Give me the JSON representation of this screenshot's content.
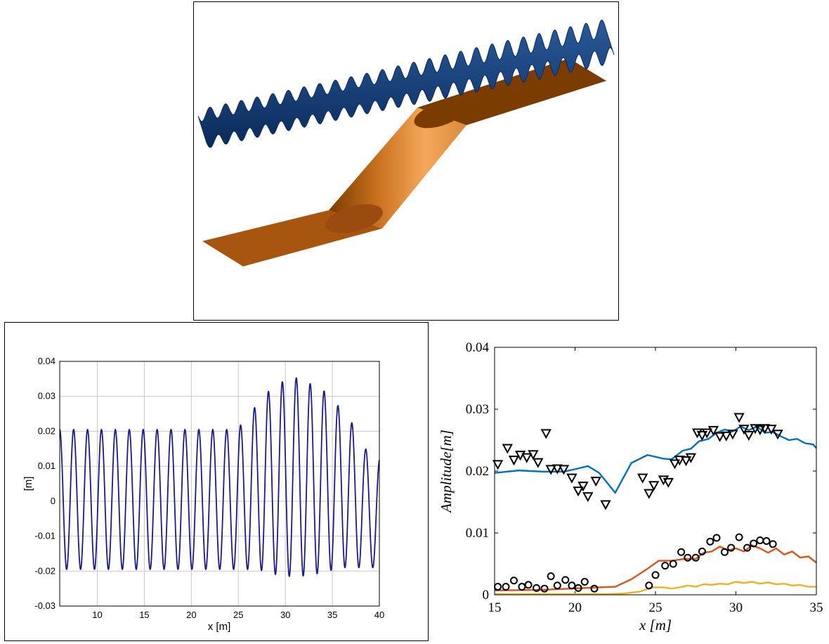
{
  "chart_data": [
    {
      "type": "other",
      "description": "3D render of a wave surface above an oblique bathymetry ramp"
    },
    {
      "type": "line",
      "xlabel": "x [m]",
      "ylabel": "[m]",
      "xlim": [
        6,
        40
      ],
      "ylim": [
        -0.03,
        0.04
      ],
      "x_ticks": [
        "10",
        "15",
        "20",
        "25",
        "30",
        "35",
        "40"
      ],
      "y_ticks": [
        "0.04",
        "0.03",
        "0.02",
        "0.01",
        "0",
        "-0.01",
        "-0.02",
        "-0.03"
      ],
      "grid": true,
      "series": [
        {
          "name": "",
          "color": "#1a1a8c",
          "wavelength": 1.48,
          "envelope_x": [
            6,
            24,
            25.5,
            26.5,
            28,
            29.5,
            31.5,
            33,
            34.5,
            36,
            37.5,
            38.5,
            40
          ],
          "envelope_max": [
            0.0205,
            0.0205,
            0.022,
            0.026,
            0.031,
            0.034,
            0.0355,
            0.033,
            0.031,
            0.026,
            0.021,
            0.015,
            0.012
          ],
          "envelope_min": [
            -0.0195,
            -0.0195,
            -0.0195,
            -0.0195,
            -0.02,
            -0.0215,
            -0.0215,
            -0.021,
            -0.02,
            -0.019,
            -0.019,
            -0.019,
            -0.019
          ]
        }
      ]
    },
    {
      "type": "line",
      "xlabel": "x [m]",
      "ylabel": "Amplitude[m]",
      "xlim": [
        15,
        35
      ],
      "ylim": [
        0,
        0.04
      ],
      "x_ticks": [
        "15",
        "20",
        "25",
        "30",
        "35"
      ],
      "y_ticks": [
        "0.04",
        "0.03",
        "0.02",
        "0.01",
        "0"
      ],
      "grid": false,
      "series": [
        {
          "name": "",
          "color": "#0072bd",
          "x": [
            15,
            16.5,
            18,
            19.3,
            20,
            20.8,
            21.5,
            22.5,
            23.5,
            24.5,
            25.5,
            26,
            26.7,
            27.2,
            27.7,
            28.3,
            28.8,
            29.3,
            29.8,
            30.3,
            30.8,
            31.3,
            31.8,
            32.3,
            32.8,
            33.3,
            33.8,
            34.3,
            34.8,
            35
          ],
          "y": [
            0.0197,
            0.0201,
            0.0199,
            0.0199,
            0.0203,
            0.0208,
            0.0197,
            0.0165,
            0.0213,
            0.0226,
            0.022,
            0.0219,
            0.0233,
            0.0236,
            0.0248,
            0.0252,
            0.0262,
            0.0267,
            0.0264,
            0.0272,
            0.0266,
            0.0272,
            0.0262,
            0.0263,
            0.0256,
            0.025,
            0.0252,
            0.0245,
            0.0243,
            0.0237
          ]
        },
        {
          "name": "",
          "color": "#d95319",
          "x": [
            15,
            18,
            21.5,
            22.5,
            23.5,
            24.5,
            25.2,
            26,
            26.8,
            27.5,
            28,
            28.5,
            29,
            29.5,
            30,
            30.5,
            31,
            31.5,
            32,
            32.5,
            33,
            33.5,
            34,
            34.5,
            35
          ],
          "y": [
            0.0007,
            0.0008,
            0.0012,
            0.0013,
            0.0025,
            0.0042,
            0.0055,
            0.0055,
            0.0058,
            0.0058,
            0.0068,
            0.007,
            0.0078,
            0.0072,
            0.0075,
            0.007,
            0.008,
            0.0075,
            0.0068,
            0.0075,
            0.0065,
            0.007,
            0.006,
            0.0062,
            0.0052
          ]
        },
        {
          "name": "",
          "color": "#edb120",
          "x": [
            15,
            22,
            23,
            24,
            24.8,
            25.5,
            26,
            26.5,
            27,
            27.5,
            28,
            28.5,
            29,
            29.5,
            30,
            30.5,
            31,
            31.5,
            32,
            32.5,
            33,
            33.5,
            34,
            34.5,
            35
          ],
          "y": [
            0.0001,
            0.0001,
            0.0002,
            0.0005,
            0.0012,
            0.0012,
            0.001,
            0.0012,
            0.0015,
            0.0013,
            0.0017,
            0.0016,
            0.0018,
            0.0017,
            0.0021,
            0.0019,
            0.0021,
            0.0018,
            0.002,
            0.0017,
            0.0018,
            0.0015,
            0.0016,
            0.0013,
            0.0013
          ]
        },
        {
          "name": "",
          "marker": "triangle-down",
          "x": [
            15.2,
            15.8,
            16.2,
            16.6,
            17.0,
            17.4,
            17.7,
            18.2,
            18.5,
            18.9,
            19.3,
            19.8,
            20.2,
            20.5,
            20.8,
            21.3,
            21.9,
            24.2,
            24.6,
            24.9,
            25.5,
            25.8,
            26.2,
            26.5,
            26.9,
            27.2,
            27.6,
            27.9,
            28.2,
            28.6,
            29.0,
            29.4,
            29.8,
            30.2,
            30.5,
            30.8,
            31.2,
            31.5,
            31.8,
            32.2,
            32.6
          ],
          "y": [
            0.0211,
            0.0237,
            0.0218,
            0.0226,
            0.0222,
            0.0227,
            0.0214,
            0.0261,
            0.0203,
            0.0204,
            0.0203,
            0.0189,
            0.0168,
            0.0176,
            0.0159,
            0.0184,
            0.0146,
            0.0189,
            0.0164,
            0.0177,
            0.0186,
            0.0182,
            0.0212,
            0.0218,
            0.0217,
            0.0222,
            0.0262,
            0.0258,
            0.0262,
            0.0266,
            0.0256,
            0.0257,
            0.026,
            0.0287,
            0.0268,
            0.0258,
            0.0269,
            0.0267,
            0.0269,
            0.0268,
            0.026
          ]
        },
        {
          "name": "",
          "marker": "circle",
          "x": [
            15.2,
            15.7,
            16.2,
            16.7,
            17.1,
            17.6,
            18.1,
            18.5,
            18.9,
            19.4,
            19.8,
            20.2,
            20.6,
            21.2,
            24.6,
            25.0,
            25.6,
            26.1,
            26.6,
            27.0,
            27.5,
            27.9,
            28.4,
            28.8,
            29.3,
            29.7,
            30.2,
            30.7,
            31.1,
            31.5,
            31.9,
            32.3
          ],
          "y": [
            0.0013,
            0.0013,
            0.0023,
            0.0013,
            0.0016,
            0.0011,
            0.001,
            0.003,
            0.0015,
            0.0024,
            0.0015,
            0.0011,
            0.0021,
            0.001,
            0.0015,
            0.0032,
            0.0047,
            0.005,
            0.0069,
            0.006,
            0.006,
            0.007,
            0.0086,
            0.0092,
            0.0069,
            0.0076,
            0.0093,
            0.0076,
            0.0083,
            0.0088,
            0.0087,
            0.0082
          ]
        }
      ]
    }
  ]
}
